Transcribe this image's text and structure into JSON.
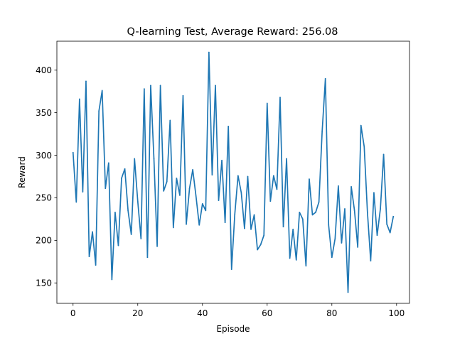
{
  "chart_data": {
    "type": "line",
    "title": "Q-learning Test, Average Reward: 256.08",
    "xlabel": "Episode",
    "ylabel": "Reward",
    "xlim": [
      -5,
      104
    ],
    "ylim": [
      126,
      434
    ],
    "xticks": [
      0,
      20,
      40,
      60,
      80,
      100
    ],
    "yticks": [
      150,
      200,
      250,
      300,
      350,
      400
    ],
    "grid": false,
    "series": [
      {
        "color": "#1f77b4",
        "x": [
          0,
          1,
          2,
          3,
          4,
          5,
          6,
          7,
          8,
          9,
          10,
          11,
          12,
          13,
          14,
          15,
          16,
          17,
          18,
          19,
          20,
          21,
          22,
          23,
          24,
          25,
          26,
          27,
          28,
          29,
          30,
          31,
          32,
          33,
          34,
          35,
          36,
          37,
          38,
          39,
          40,
          41,
          42,
          43,
          44,
          45,
          46,
          47,
          48,
          49,
          50,
          51,
          52,
          53,
          54,
          55,
          56,
          57,
          58,
          59,
          60,
          61,
          62,
          63,
          64,
          65,
          66,
          67,
          68,
          69,
          70,
          71,
          72,
          73,
          74,
          75,
          76,
          77,
          78,
          79,
          80,
          81,
          82,
          83,
          84,
          85,
          86,
          87,
          88,
          89,
          90,
          91,
          92,
          93,
          94,
          95,
          96,
          97,
          98,
          99
        ],
        "y": [
          303,
          245,
          366,
          257,
          387,
          181,
          210,
          171,
          352,
          376,
          261,
          291,
          154,
          233,
          194,
          273,
          284,
          235,
          207,
          296,
          246,
          202,
          378,
          180,
          382,
          296,
          193,
          382,
          258,
          269,
          341,
          215,
          273,
          253,
          370,
          219,
          261,
          283,
          252,
          218,
          243,
          235,
          421,
          277,
          382,
          247,
          294,
          221,
          334,
          166,
          231,
          276,
          256,
          214,
          275,
          213,
          230,
          189,
          195,
          206,
          361,
          246,
          276,
          260,
          368,
          216,
          296,
          179,
          213,
          177,
          233,
          225,
          170,
          272,
          230,
          233,
          245,
          328,
          390,
          218,
          180,
          202,
          264,
          197,
          237,
          139,
          263,
          235,
          192,
          335,
          310,
          233,
          176,
          256,
          206,
          237,
          301,
          219,
          209,
          228
        ]
      }
    ]
  }
}
